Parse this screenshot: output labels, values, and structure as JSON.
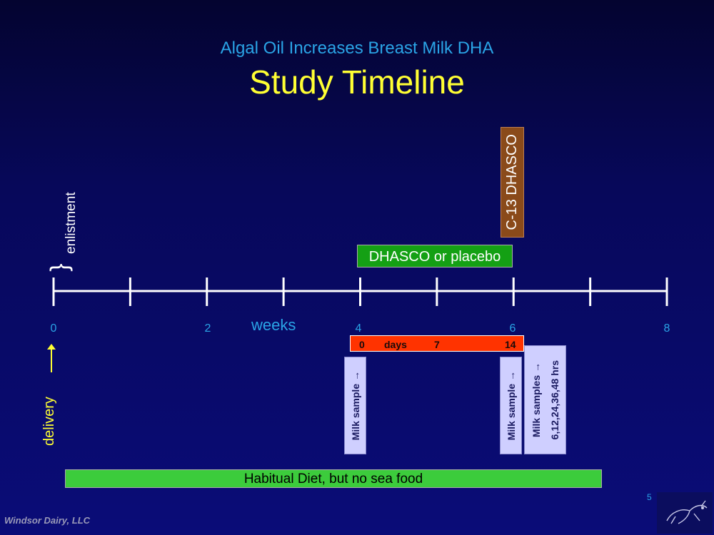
{
  "slide": {
    "subtitle": "Algal Oil Increases Breast Milk DHA",
    "title": "Study Timeline",
    "page_number": "5",
    "footer": "Windsor Dairy, LLC"
  },
  "timeline": {
    "unit_label": "weeks",
    "tick_labels": [
      "0",
      "2",
      "4",
      "6",
      "8"
    ],
    "enlistment_label": "enlistment",
    "delivery_label": "delivery"
  },
  "interventions": {
    "c13_label": "C-13 DHASCO",
    "supplement_label": "DHASCO or placebo",
    "diet_label": "Habitual Diet, but no sea food"
  },
  "days_bar": {
    "label": "days",
    "day_start": "0",
    "day_mid": "7",
    "day_end": "14"
  },
  "samples": {
    "first": "Milk sample →",
    "second": "Milk sample →",
    "third_line1": "Milk samples →",
    "third_line2": "6,12,24,36,48 hrs"
  },
  "colors": {
    "title": "#ffff33",
    "subtitle": "#2aa4e6",
    "supplement_bar": "#14a014",
    "diet_bar": "#3ccc3c",
    "days_bar": "#ff3300",
    "c13_box": "#8a4a1a",
    "milk_box": "#cfcfff"
  },
  "icons": {
    "logo": "cow-sketch-logo"
  }
}
